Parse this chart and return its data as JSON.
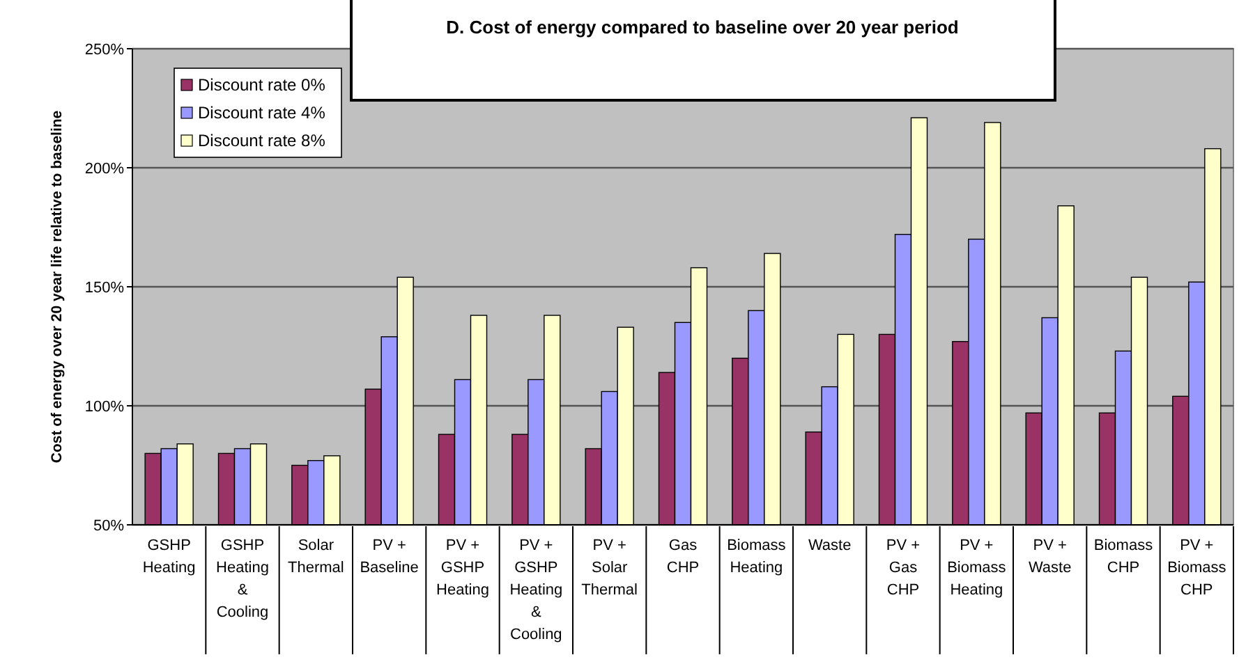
{
  "chart_data": {
    "type": "bar",
    "title": "D. Cost of energy compared to baseline over 20 year period",
    "ylabel": "Cost of energy over 20 year life relative to baseline",
    "categories": [
      "GSHP\nHeating",
      "GSHP\nHeating\n&\nCooling",
      "Solar\nThermal",
      "PV +\nBaseline",
      "PV +\nGSHP\nHeating",
      "PV +\nGSHP\nHeating\n&\nCooling",
      "PV +\nSolar\nThermal",
      "Gas\nCHP",
      "Biomass\nHeating",
      "Waste",
      "PV +\nGas\nCHP",
      "PV +\nBiomass\nHeating",
      "PV +\nWaste",
      "Biomass\nCHP",
      "PV +\nBiomass\nCHP"
    ],
    "series": [
      {
        "name": "Discount rate 0%",
        "color": "#993366",
        "values": [
          80,
          80,
          75,
          107,
          88,
          88,
          82,
          114,
          120,
          89,
          130,
          127,
          97,
          97,
          104
        ]
      },
      {
        "name": "Discount rate 4%",
        "color": "#9999ff",
        "values": [
          82,
          82,
          77,
          129,
          111,
          111,
          106,
          135,
          140,
          108,
          172,
          170,
          137,
          123,
          152
        ]
      },
      {
        "name": "Discount rate 8%",
        "color": "#ffffcc",
        "values": [
          84,
          84,
          79,
          154,
          138,
          138,
          133,
          158,
          164,
          130,
          221,
          219,
          184,
          154,
          208
        ]
      }
    ],
    "ylim": [
      50,
      250
    ],
    "yticks": [
      {
        "value": 50,
        "label": "50%"
      },
      {
        "value": 100,
        "label": "100%"
      },
      {
        "value": 150,
        "label": "150%"
      },
      {
        "value": 200,
        "label": "200%"
      },
      {
        "value": 250,
        "label": "250%"
      }
    ],
    "grid": "y",
    "legend": "top left"
  }
}
